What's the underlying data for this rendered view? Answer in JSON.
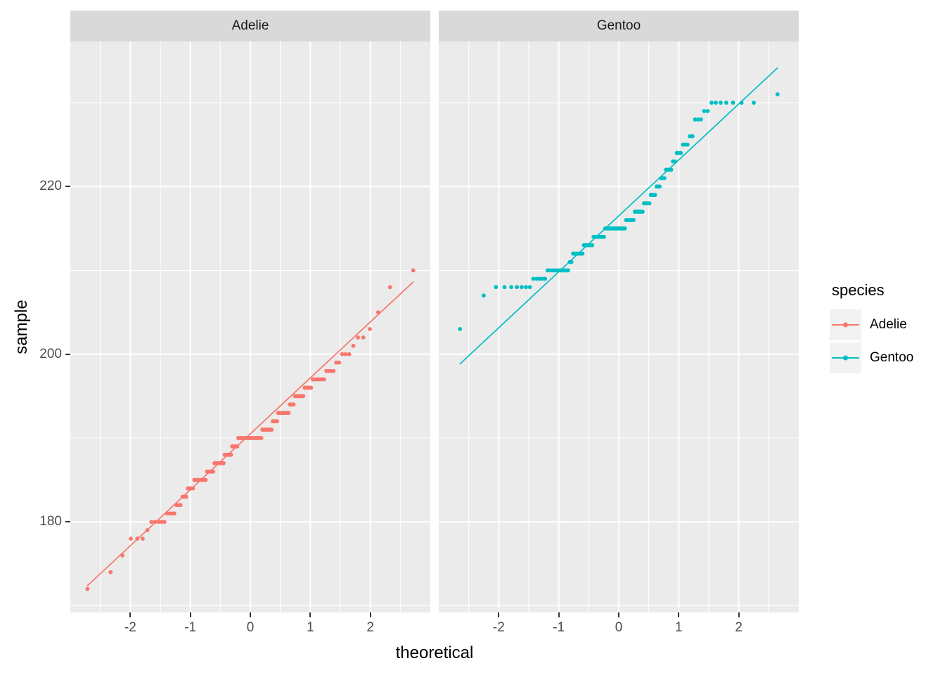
{
  "chart_data": {
    "type": "scatter",
    "subtype": "qq-plot-faceted",
    "x_label": "theoretical",
    "y_label": "sample",
    "x_ticks": [
      -2,
      -1,
      0,
      1,
      2
    ],
    "x_minor": [
      -2.5,
      -1.5,
      -0.5,
      0.5,
      1.5,
      2.5
    ],
    "y_ticks": [
      180,
      200,
      220
    ],
    "y_minor": [
      170,
      190,
      210,
      230
    ],
    "x_range": [
      -3.0,
      3.0
    ],
    "y_range": [
      169.2,
      237.3
    ],
    "grid": "on",
    "point_rule": "for each facet: n = sum of counts; i-th sorted sample point is plotted at x = qnorm((i-0.5)/n), y = value",
    "facets": [
      {
        "name": "Adelie",
        "color": "#F8766D",
        "qq_line": {
          "intercept": 190.5,
          "slope": 6.672,
          "x_from": -2.72,
          "x_to": 2.72
        },
        "sample_value_counts": [
          [
            172,
            1
          ],
          [
            174,
            1
          ],
          [
            176,
            1
          ],
          [
            178,
            3
          ],
          [
            179,
            1
          ],
          [
            180,
            5
          ],
          [
            181,
            4
          ],
          [
            182,
            3
          ],
          [
            183,
            3
          ],
          [
            184,
            4
          ],
          [
            185,
            9
          ],
          [
            186,
            6
          ],
          [
            187,
            9
          ],
          [
            188,
            7
          ],
          [
            189,
            6
          ],
          [
            190,
            24
          ],
          [
            191,
            10
          ],
          [
            192,
            5
          ],
          [
            193,
            10
          ],
          [
            194,
            4
          ],
          [
            195,
            7
          ],
          [
            196,
            5
          ],
          [
            197,
            7
          ],
          [
            198,
            4
          ],
          [
            199,
            2
          ],
          [
            200,
            3
          ],
          [
            201,
            1
          ],
          [
            202,
            2
          ],
          [
            203,
            1
          ],
          [
            205,
            1
          ],
          [
            208,
            1
          ],
          [
            210,
            1
          ]
        ]
      },
      {
        "name": "Gentoo",
        "color": "#00BFC4",
        "qq_line": {
          "intercept": 216.5,
          "slope": 6.672,
          "x_from": -2.65,
          "x_to": 2.65
        },
        "sample_value_counts": [
          [
            203,
            1
          ],
          [
            207,
            1
          ],
          [
            208,
            7
          ],
          [
            209,
            5
          ],
          [
            210,
            11
          ],
          [
            211,
            2
          ],
          [
            212,
            7
          ],
          [
            213,
            7
          ],
          [
            214,
            9
          ],
          [
            215,
            17
          ],
          [
            216,
            7
          ],
          [
            217,
            7
          ],
          [
            218,
            5
          ],
          [
            219,
            4
          ],
          [
            220,
            3
          ],
          [
            221,
            3
          ],
          [
            222,
            4
          ],
          [
            223,
            2
          ],
          [
            224,
            3
          ],
          [
            225,
            3
          ],
          [
            226,
            2
          ],
          [
            228,
            3
          ],
          [
            229,
            2
          ],
          [
            230,
            7
          ],
          [
            231,
            1
          ]
        ]
      }
    ]
  },
  "legend": {
    "title": "species",
    "entries": [
      {
        "label": "Adelie",
        "color": "#F8766D"
      },
      {
        "label": "Gentoo",
        "color": "#00BFC4"
      }
    ]
  },
  "theme": {
    "page_bg": "#FFFFFF",
    "panel_bg": "#EBEBEB",
    "strip_bg": "#D9D9D9",
    "grid_color": "#FFFFFF",
    "tick_color": "#333333",
    "axis_text_color": "#4D4D4D",
    "strip_text_color": "#1A1A1A",
    "legend_key_bg": "#F2F2F2"
  }
}
